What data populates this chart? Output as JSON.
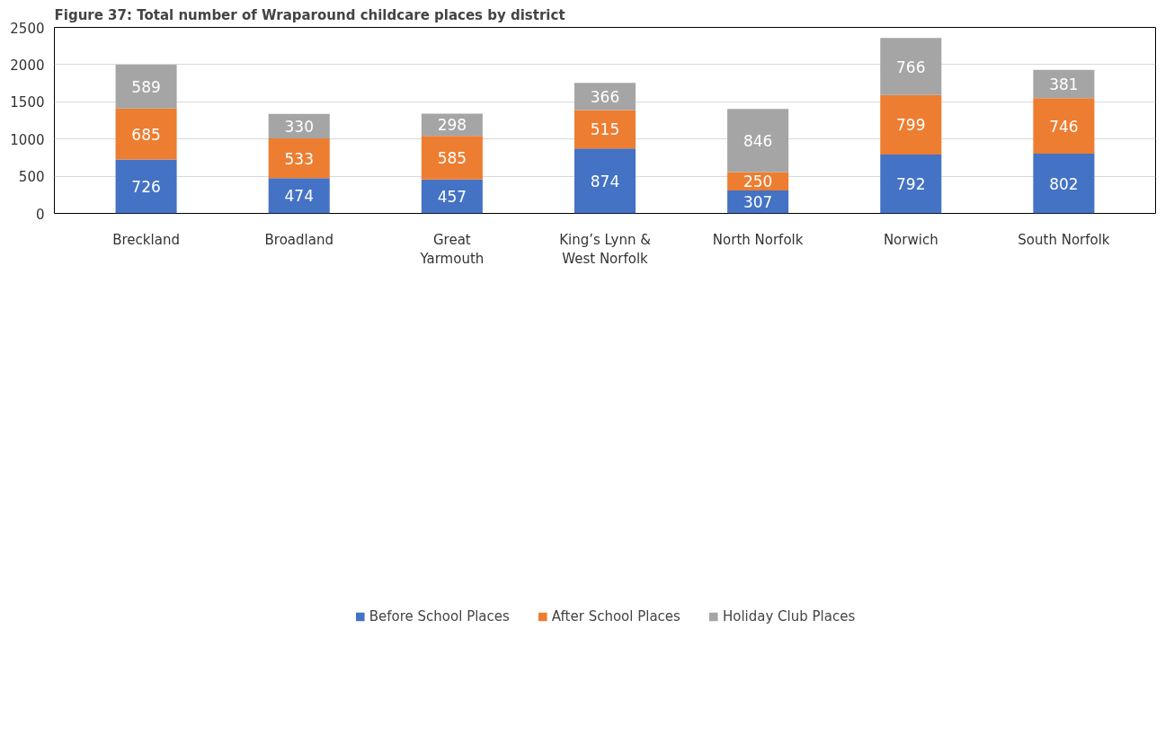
{
  "chart_data": {
    "type": "bar",
    "title": "Figure 37: Total number of Wraparound childcare places by district",
    "categories": [
      "Breckland",
      "Broadland",
      "Great Yarmouth",
      "King’s Lynn & West Norfolk",
      "North Norfolk",
      "Norwich",
      "South Norfolk"
    ],
    "series": [
      {
        "name": "Before School Places",
        "color": "#4472c4",
        "values": [
          726,
          474,
          457,
          874,
          307,
          792,
          802
        ]
      },
      {
        "name": "After School Places",
        "color": "#ed7d31",
        "values": [
          685,
          533,
          585,
          515,
          250,
          799,
          746
        ]
      },
      {
        "name": "Holiday Club Places",
        "color": "#a5a5a5",
        "values": [
          589,
          330,
          298,
          366,
          846,
          766,
          381
        ]
      }
    ],
    "stacked": true,
    "data_labels": true,
    "ylim": [
      0,
      2500
    ],
    "yticks": [
      0,
      500,
      1000,
      1500,
      2000,
      2500
    ],
    "grid": "y",
    "legend": "bottom"
  }
}
